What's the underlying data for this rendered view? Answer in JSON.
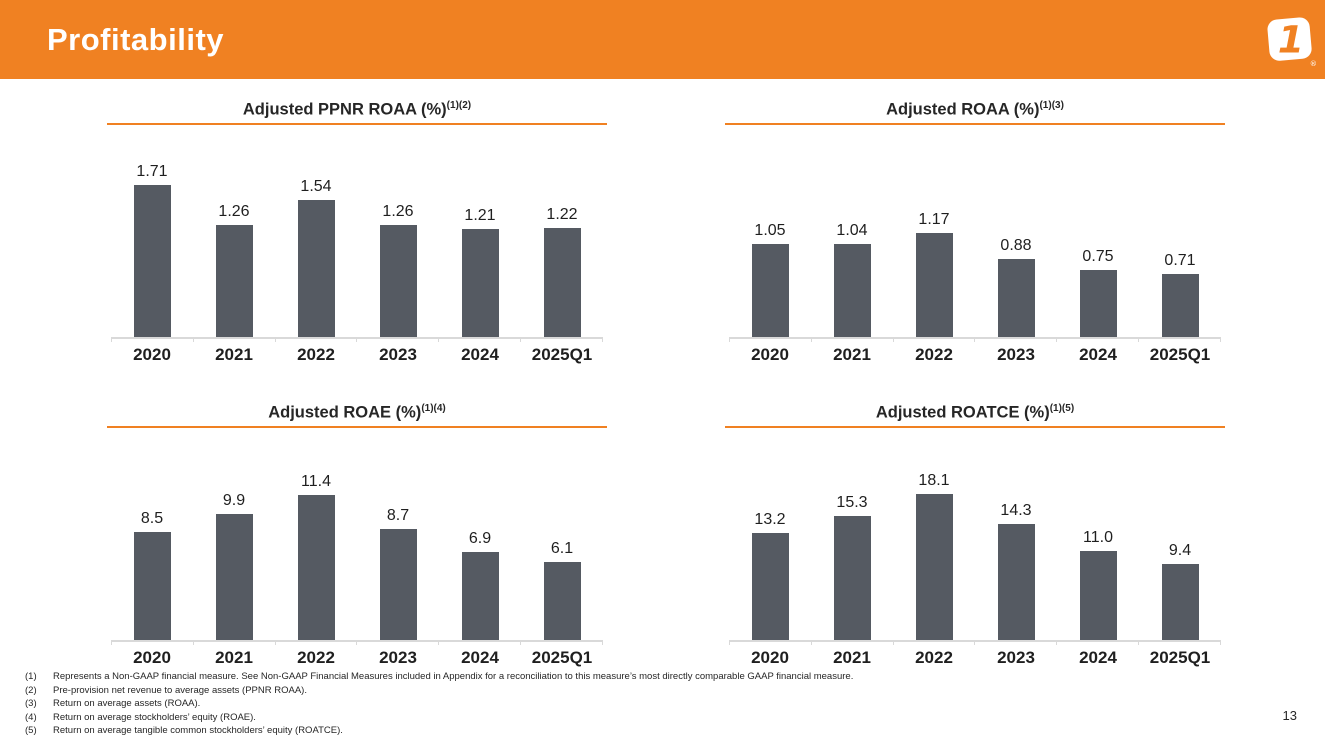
{
  "header": {
    "title": "Profitability"
  },
  "logo": {
    "numeral": "1",
    "registered": "®"
  },
  "colors": {
    "accent_orange": "#F08122",
    "bar_gray": "#555A62",
    "axis_gray": "#D9D9D9"
  },
  "chart_data": [
    {
      "type": "bar",
      "title": "Adjusted PPNR ROAA (%)",
      "superscript": "(1)(2)",
      "categories": [
        "2020",
        "2021",
        "2022",
        "2023",
        "2024",
        "2025Q1"
      ],
      "values": [
        1.71,
        1.26,
        1.54,
        1.26,
        1.21,
        1.22
      ],
      "labels": [
        "1.71",
        "1.26",
        "1.54",
        "1.26",
        "1.21",
        "1.22"
      ],
      "xlabel": "",
      "ylabel": "",
      "ylim": [
        0,
        2
      ],
      "grid": false,
      "legend": "none"
    },
    {
      "type": "bar",
      "title": "Adjusted ROAA (%)",
      "superscript": "(1)(3)",
      "categories": [
        "2020",
        "2021",
        "2022",
        "2023",
        "2024",
        "2025Q1"
      ],
      "values": [
        1.05,
        1.04,
        1.17,
        0.88,
        0.75,
        0.71
      ],
      "labels": [
        "1.05",
        "1.04",
        "1.17",
        "0.88",
        "0.75",
        "0.71"
      ],
      "xlabel": "",
      "ylabel": "",
      "ylim": [
        0,
        2
      ],
      "grid": false,
      "legend": "none"
    },
    {
      "type": "bar",
      "title": "Adjusted ROAE (%)",
      "superscript": "(1)(4)",
      "categories": [
        "2020",
        "2021",
        "2022",
        "2023",
        "2024",
        "2025Q1"
      ],
      "values": [
        8.5,
        9.9,
        11.4,
        8.7,
        6.9,
        6.1
      ],
      "labels": [
        "8.5",
        "9.9",
        "11.4",
        "8.7",
        "6.9",
        "6.1"
      ],
      "xlabel": "",
      "ylabel": "",
      "ylim": [
        0,
        14
      ],
      "grid": false,
      "legend": "none"
    },
    {
      "type": "bar",
      "title": "Adjusted ROATCE (%)",
      "superscript": "(1)(5)",
      "categories": [
        "2020",
        "2021",
        "2022",
        "2023",
        "2024",
        "2025Q1"
      ],
      "values": [
        13.2,
        15.3,
        18.1,
        14.3,
        11.0,
        9.4
      ],
      "labels": [
        "13.2",
        "15.3",
        "18.1",
        "14.3",
        "11.0",
        "9.4"
      ],
      "xlabel": "",
      "ylabel": "",
      "ylim": [
        0,
        22
      ],
      "grid": false,
      "legend": "none"
    }
  ],
  "footnotes": [
    {
      "num": "(1)",
      "text": "Represents a Non-GAAP financial measure. See Non-GAAP Financial Measures included in Appendix for a reconciliation to this measure’s most directly comparable GAAP financial measure."
    },
    {
      "num": "(2)",
      "text": "Pre-provision net revenue to average assets (PPNR ROAA)."
    },
    {
      "num": "(3)",
      "text": "Return on average assets (ROAA)."
    },
    {
      "num": "(4)",
      "text": "Return on average stockholders’ equity (ROAE)."
    },
    {
      "num": "(5)",
      "text": "Return on average tangible common stockholders’ equity (ROATCE)."
    }
  ],
  "page_number": "13"
}
